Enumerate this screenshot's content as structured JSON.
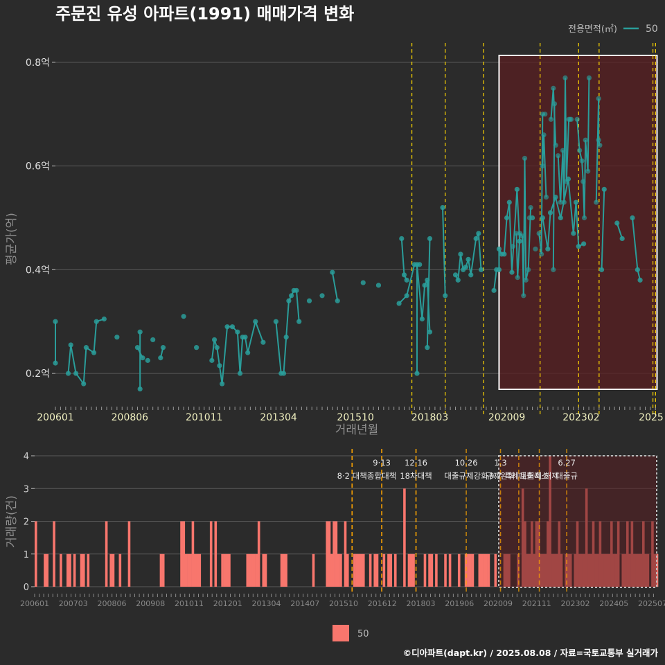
{
  "title": "주문진 유성 아파트(1991) 매매가격 변화",
  "footer": "©디아파트(dapt.kr) / 2025.08.08 / 자료=국토교통부 실거래가",
  "colors": {
    "background": "#2b2b2b",
    "price_line": "#2a9d9a",
    "volume_bar": "#f8766d",
    "policy_line": "#ffd700",
    "policy_line_lower": "#ffa500",
    "highlight_fill": "#5a1f22",
    "highlight_border": "#ffffff"
  },
  "price_legend": {
    "title": "전용면적(㎡)",
    "label": "50"
  },
  "volume_legend": {
    "label": "50"
  },
  "chart_data": [
    {
      "type": "line",
      "panel": "price",
      "xlabel": "거래년월",
      "ylabel": "평균가(억)",
      "ylim": [
        0.14,
        0.84
      ],
      "yticks": [
        0.2,
        0.4,
        0.6,
        0.8
      ],
      "ytick_labels": [
        "0.2억",
        "0.4억",
        "0.6억",
        "0.8억"
      ],
      "xticks": [
        "2006-01",
        "2008-06",
        "2010-11",
        "2013-04",
        "2015-10",
        "2018-03",
        "2020-09",
        "2023-02",
        "2025-07"
      ],
      "xtick_labels": [
        "200601",
        "200806",
        "201011",
        "201304",
        "201510",
        "201803",
        "202009",
        "202302",
        "2025"
      ],
      "policy_dates": [
        "2017-08",
        "2018-09",
        "2019-12",
        "2021-10",
        "2023-01",
        "2023-09",
        "2025-06",
        "2025-07"
      ],
      "highlight_range": [
        "2020-06",
        "2025-08"
      ],
      "series": [
        {
          "name": "50",
          "points": [
            [
              "2006-01",
              0.3
            ],
            [
              "2006-01",
              0.22
            ],
            [
              "2006-06",
              0.2
            ],
            [
              "2006-07",
              0.255
            ],
            [
              "2006-09",
              0.2
            ],
            [
              "2006-12",
              0.18
            ],
            [
              "2007-01",
              0.25
            ],
            [
              "2007-04",
              0.24
            ],
            [
              "2007-05",
              0.3
            ],
            [
              "2007-08",
              0.305
            ],
            [
              "2008-01",
              0.27
            ],
            [
              "2008-09",
              0.25
            ],
            [
              "2008-11",
              0.23
            ],
            [
              "2008-10",
              0.17
            ],
            [
              "2008-10",
              0.28
            ],
            [
              "2009-03",
              0.265
            ],
            [
              "2009-01",
              0.225
            ],
            [
              "2009-06",
              0.23
            ],
            [
              "2009-07",
              0.25
            ],
            [
              "2010-03",
              0.31
            ],
            [
              "2010-08",
              0.25
            ],
            [
              "2011-02",
              0.225
            ],
            [
              "2011-03",
              0.265
            ],
            [
              "2011-04",
              0.25
            ],
            [
              "2011-05",
              0.215
            ],
            [
              "2011-06",
              0.18
            ],
            [
              "2011-08",
              0.29
            ],
            [
              "2011-10",
              0.29
            ],
            [
              "2011-12",
              0.28
            ],
            [
              "2012-01",
              0.2
            ],
            [
              "2012-02",
              0.27
            ],
            [
              "2012-03",
              0.27
            ],
            [
              "2012-04",
              0.24
            ],
            [
              "2012-07",
              0.3
            ],
            [
              "2012-10",
              0.26
            ],
            [
              "2013-03",
              0.3
            ],
            [
              "2013-05",
              0.2
            ],
            [
              "2013-06",
              0.2
            ],
            [
              "2013-07",
              0.27
            ],
            [
              "2013-08",
              0.34
            ],
            [
              "2013-09",
              0.35
            ],
            [
              "2013-10",
              0.36
            ],
            [
              "2013-11",
              0.36
            ],
            [
              "2013-12",
              0.3
            ],
            [
              "2014-04",
              0.34
            ],
            [
              "2014-09",
              0.35
            ],
            [
              "2015-01",
              0.395
            ],
            [
              "2015-03",
              0.34
            ],
            [
              "2016-01",
              0.375
            ],
            [
              "2016-07",
              0.37
            ],
            [
              "2017-04",
              0.46
            ],
            [
              "2017-05",
              0.39
            ],
            [
              "2017-06",
              0.38
            ],
            [
              "2017-03",
              0.335
            ],
            [
              "2017-06",
              0.35
            ],
            [
              "2017-09",
              0.41
            ],
            [
              "2017-11",
              0.41
            ],
            [
              "2017-10",
              0.2
            ],
            [
              "2017-10",
              0.41
            ],
            [
              "2017-12",
              0.305
            ],
            [
              "2018-01",
              0.37
            ],
            [
              "2018-02",
              0.38
            ],
            [
              "2018-03",
              0.28
            ],
            [
              "2018-02",
              0.25
            ],
            [
              "2018-03",
              0.46
            ],
            [
              "2018-08",
              0.52
            ],
            [
              "2018-09",
              0.35
            ],
            [
              "2019-01",
              0.39
            ],
            [
              "2019-02",
              0.38
            ],
            [
              "2019-03",
              0.43
            ],
            [
              "2019-04",
              0.4
            ],
            [
              "2019-05",
              0.405
            ],
            [
              "2019-06",
              0.42
            ],
            [
              "2019-07",
              0.39
            ],
            [
              "2019-09",
              0.46
            ],
            [
              "2019-10",
              0.47
            ],
            [
              "2019-11",
              0.4
            ],
            [
              "2020-04",
              0.36
            ],
            [
              "2020-05",
              0.4
            ],
            [
              "2020-06",
              0.4
            ],
            [
              "2020-06",
              0.44
            ],
            [
              "2020-07",
              0.43
            ],
            [
              "2020-08",
              0.43
            ],
            [
              "2020-09",
              0.5
            ],
            [
              "2020-10",
              0.53
            ],
            [
              "2020-11",
              0.395
            ],
            [
              "2021-01",
              0.555
            ],
            [
              "2021-02",
              0.455
            ],
            [
              "2021-07",
              0.5
            ],
            [
              "2021-11",
              0.5
            ],
            [
              "2022-01",
              0.44
            ],
            [
              "2022-02",
              0.51
            ],
            [
              "2022-04",
              0.54
            ],
            [
              "2022-06",
              0.5
            ],
            [
              "2022-09",
              0.575
            ],
            [
              "2022-11",
              0.47
            ],
            [
              "2022-12",
              0.53
            ],
            [
              "2023-01",
              0.445
            ],
            [
              "2023-03",
              0.45
            ],
            [
              "2023-10",
              0.4
            ],
            [
              "2023-11",
              0.555
            ],
            [
              "2024-04",
              0.49
            ],
            [
              "2024-06",
              0.46
            ],
            [
              "2024-10",
              0.5
            ],
            [
              "2024-12",
              0.4
            ],
            [
              "2025-01",
              0.38
            ]
          ]
        }
      ],
      "highlight_points": [
        [
          "2021-07",
          0.445
        ],
        [
          "2021-10",
          0.47
        ],
        [
          "2021-11",
          0.385
        ],
        [
          "2022-01",
          0.47
        ],
        [
          "2022-03",
          0.465
        ],
        [
          "2022-04",
          0.35
        ],
        [
          "2022-05",
          0.615
        ],
        [
          "2022-06",
          0.38
        ],
        [
          "2022-08",
          0.4
        ],
        [
          "2022-10",
          0.52
        ],
        [
          "2022-09",
          0.5
        ],
        [
          "2023-02",
          0.44
        ],
        [
          "2023-05",
          0.47
        ],
        [
          "2023-07",
          0.43
        ],
        [
          "2023-08",
          0.7
        ],
        [
          "2023-10",
          0.7
        ],
        [
          "2023-08",
          0.6
        ],
        [
          "2023-09",
          0.66
        ],
        [
          "2023-11",
          0.54
        ],
        [
          "2024-03",
          0.69
        ],
        [
          "2024-05",
          0.75
        ],
        [
          "2024-07",
          0.64
        ],
        [
          "2024-05",
          0.4
        ],
        [
          "2024-06",
          0.72
        ],
        [
          "2024-09",
          0.62
        ],
        [
          "2024-11",
          0.53
        ],
        [
          "2025-01",
          0.63
        ],
        [
          "2025-02",
          0.53
        ],
        [
          "2025-03",
          0.77
        ],
        [
          "2025-04",
          0.57
        ],
        [
          "2025-06",
          0.69
        ],
        [
          "2025-07",
          0.69
        ],
        [
          "2025-08",
          0.69
        ],
        [
          "2026-01",
          0.69
        ],
        [
          "2026-03",
          0.63
        ],
        [
          "2026-05",
          0.61
        ],
        [
          "2026-06",
          0.57
        ],
        [
          "2026-07",
          0.5
        ],
        [
          "2026-08",
          0.65
        ],
        [
          "2026-10",
          0.59
        ],
        [
          "2026-11",
          0.77
        ],
        [
          "2027-05",
          0.53
        ],
        [
          "2027-07",
          0.73
        ],
        [
          "2027-07",
          0.65
        ],
        [
          "2027-08",
          0.64
        ]
      ]
    },
    {
      "type": "bar",
      "panel": "volume",
      "ylabel": "거래량(건)",
      "ylim": [
        0,
        4
      ],
      "yticks": [
        0,
        1,
        2,
        3,
        4
      ],
      "xtick_labels": [
        "200601",
        "200703",
        "200806",
        "200908",
        "201011",
        "201201",
        "201304",
        "201407",
        "201510",
        "201612",
        "201803",
        "201906",
        "202009",
        "202111",
        "202302",
        "202405",
        "202507"
      ],
      "series": [
        {
          "name": "50",
          "values": [
            2,
            0,
            0,
            0,
            1,
            1,
            0,
            0,
            2,
            0,
            0,
            1,
            0,
            0,
            1,
            1,
            0,
            1,
            0,
            0,
            1,
            1,
            0,
            1,
            0,
            0,
            0,
            0,
            0,
            0,
            0,
            2,
            0,
            1,
            1,
            0,
            0,
            1,
            0,
            0,
            0,
            2,
            0,
            0,
            0,
            0,
            0,
            0,
            0,
            0,
            0,
            0,
            0,
            0,
            0,
            1,
            1,
            0,
            0,
            0,
            0,
            0,
            0,
            0,
            2,
            2,
            1,
            1,
            1,
            2,
            1,
            1,
            1,
            0,
            0,
            0,
            0,
            2,
            0,
            2,
            0,
            0,
            1,
            1,
            1,
            1,
            0,
            0,
            0,
            0,
            0,
            0,
            0,
            1,
            1,
            1,
            1,
            1,
            2,
            0,
            1,
            1,
            0,
            0,
            0,
            0,
            0,
            0,
            1,
            1,
            1,
            0,
            0,
            0,
            0,
            0,
            0,
            0,
            0,
            0,
            0,
            0,
            1,
            0,
            0,
            0,
            0,
            0,
            2,
            2,
            1,
            2,
            2,
            1,
            1,
            0,
            2,
            1,
            0,
            0,
            1,
            1,
            1,
            1,
            1,
            0,
            0,
            1,
            0,
            1,
            1,
            0,
            0,
            1,
            0,
            1,
            1,
            0,
            1,
            0,
            0,
            0,
            3,
            0,
            1,
            1,
            1,
            0,
            0,
            0,
            0,
            1,
            0,
            1,
            1,
            0,
            1,
            0,
            0,
            0,
            1,
            0,
            1,
            0,
            0,
            0,
            1,
            0,
            0,
            1,
            1,
            1,
            1,
            0,
            0,
            1,
            1,
            1,
            1,
            1,
            0,
            0,
            1,
            0,
            0,
            0,
            1,
            1,
            1,
            0,
            0,
            0,
            1,
            0,
            3,
            2,
            1,
            1,
            2,
            1,
            2,
            2,
            1,
            1,
            1,
            2,
            4,
            1,
            1,
            1,
            2,
            1,
            0,
            1,
            1,
            1,
            0,
            1,
            2,
            1,
            1,
            1,
            3,
            1,
            1,
            2,
            1,
            1,
            2,
            1,
            1,
            1,
            1,
            2,
            1,
            1,
            2,
            0,
            1,
            1,
            2,
            1,
            2,
            1,
            1,
            1,
            1,
            2,
            1,
            1,
            0,
            2,
            1,
            1
          ]
        }
      ],
      "annotations": [
        {
          "date": "2017-08",
          "label1": "",
          "label2": "8·2 대책"
        },
        {
          "date": "2018-09",
          "label1": "9·13",
          "label2": "종합대책"
        },
        {
          "date": "2019-12",
          "label1": "12·16",
          "label2": "18차대책"
        },
        {
          "date": "2021-10",
          "label1": "10.26",
          "label2": "대출규제강화"
        },
        {
          "date": "2023-01",
          "label1": "1.3",
          "label2": "규제완화"
        },
        {
          "date": "2023-09",
          "label1": "",
          "label2": "9.7 특례대출축소"
        },
        {
          "date": "2024-06",
          "label1": "",
          "label2": "토허제 해제"
        },
        {
          "date": "2025-06",
          "label1": "6.27",
          "label2": "대출규"
        }
      ]
    }
  ]
}
